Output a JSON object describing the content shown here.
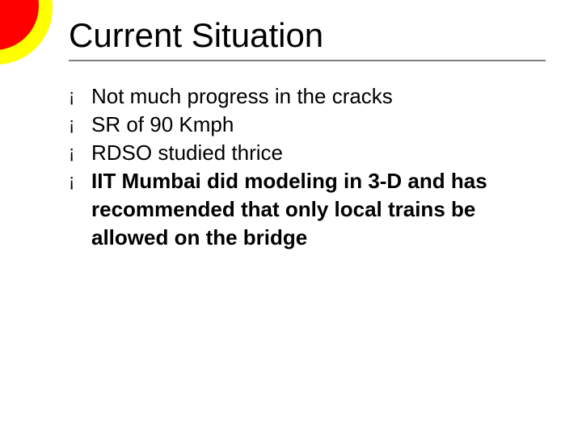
{
  "slide": {
    "title": "Current Situation",
    "title_fontsize": 42,
    "title_color": "#000000",
    "underline_color": "#808080",
    "bullet_glyph": "¡",
    "bullets": [
      {
        "text": "Not much progress in the cracks",
        "bold": false
      },
      {
        "text": "SR of 90 Kmph",
        "bold": false
      },
      {
        "text": "RDSO studied thrice",
        "bold": false
      },
      {
        "text": "IIT Mumbai did modeling in 3-D and has recommended that only local trains be allowed on the bridge",
        "bold": true
      }
    ],
    "body_fontsize": 26,
    "body_color": "#000000",
    "decor": {
      "outer_color": "#ffff00",
      "inner_color": "#ff0000"
    },
    "background_color": "#ffffff",
    "font_family": "Comic Sans MS"
  }
}
